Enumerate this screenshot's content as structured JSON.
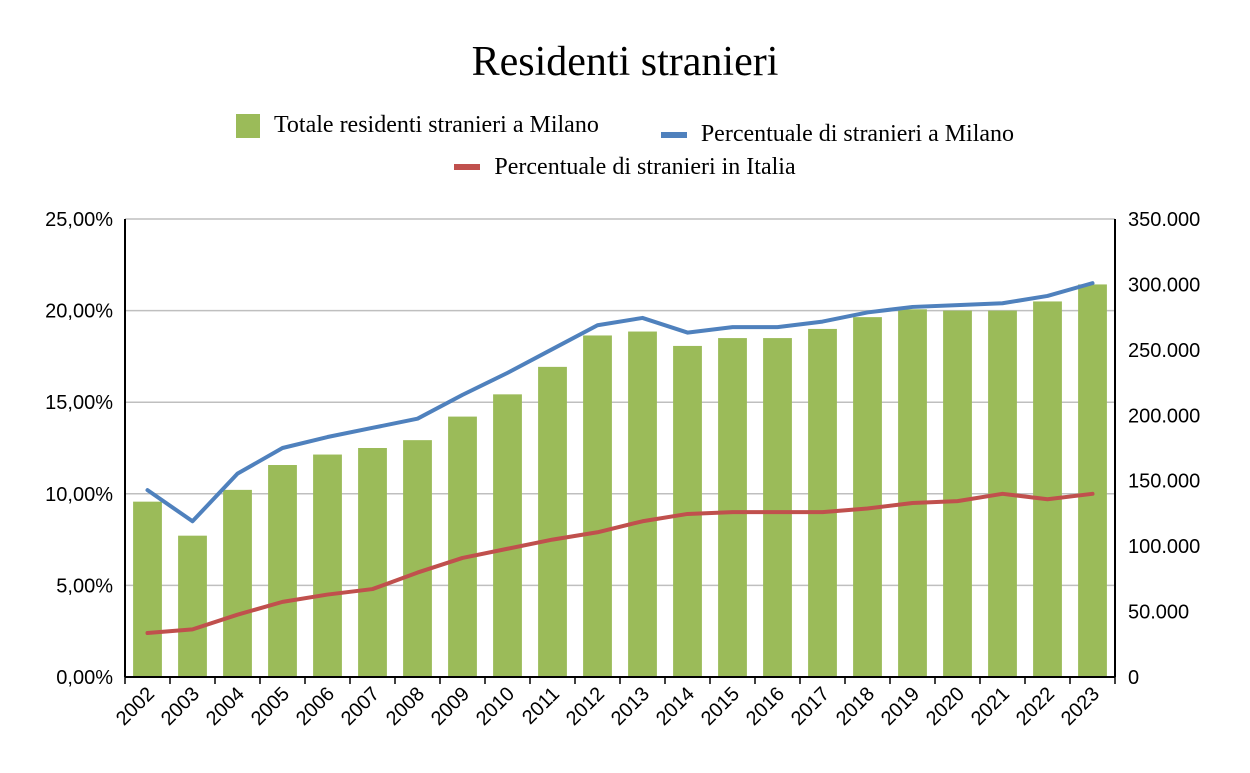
{
  "chart_data": {
    "type": "bar",
    "title": "Residenti stranieri",
    "categories": [
      "2002",
      "2003",
      "2004",
      "2005",
      "2006",
      "2007",
      "2008",
      "2009",
      "2010",
      "2011",
      "2012",
      "2013",
      "2014",
      "2015",
      "2016",
      "2017",
      "2018",
      "2019",
      "2020",
      "2021",
      "2022",
      "2023"
    ],
    "series": [
      {
        "name": "Totale residenti stranieri a Milano",
        "type": "bar",
        "axis": "right",
        "color": "#9BBB59",
        "values": [
          134000,
          108000,
          143000,
          162000,
          170000,
          175000,
          181000,
          199000,
          216000,
          237000,
          261000,
          264000,
          253000,
          259000,
          259000,
          266000,
          275000,
          281000,
          280000,
          280000,
          287000,
          300000
        ]
      },
      {
        "name": "Percentuale di stranieri a Milano",
        "type": "line",
        "axis": "left",
        "color": "#4F81BD",
        "values": [
          10.2,
          8.5,
          11.1,
          12.5,
          13.1,
          13.6,
          14.1,
          15.4,
          16.6,
          17.9,
          19.2,
          19.6,
          18.8,
          19.1,
          19.1,
          19.4,
          19.9,
          20.2,
          20.3,
          20.4,
          20.8,
          21.5
        ]
      },
      {
        "name": "Percentuale di stranieri in Italia",
        "type": "line",
        "axis": "left",
        "color": "#C0504D",
        "values": [
          2.4,
          2.6,
          3.4,
          4.1,
          4.5,
          4.8,
          5.7,
          6.5,
          7.0,
          7.5,
          7.9,
          8.5,
          8.9,
          9.0,
          9.0,
          9.0,
          9.2,
          9.5,
          9.6,
          10.0,
          9.7,
          10.0
        ]
      }
    ],
    "y_left": {
      "ylim": [
        0,
        25
      ],
      "ticks": [
        0,
        5,
        10,
        15,
        20,
        25
      ],
      "tick_labels": [
        "0,00%",
        "5,00%",
        "10,00%",
        "15,00%",
        "20,00%",
        "25,00%"
      ]
    },
    "y_right": {
      "ylim": [
        0,
        350000
      ],
      "ticks": [
        0,
        50000,
        100000,
        150000,
        200000,
        250000,
        300000,
        350000
      ],
      "tick_labels": [
        "0",
        "50.000",
        "100.000",
        "150.000",
        "200.000",
        "250.000",
        "300.000",
        "350.000"
      ]
    },
    "grid": true,
    "legend_position": "top"
  }
}
